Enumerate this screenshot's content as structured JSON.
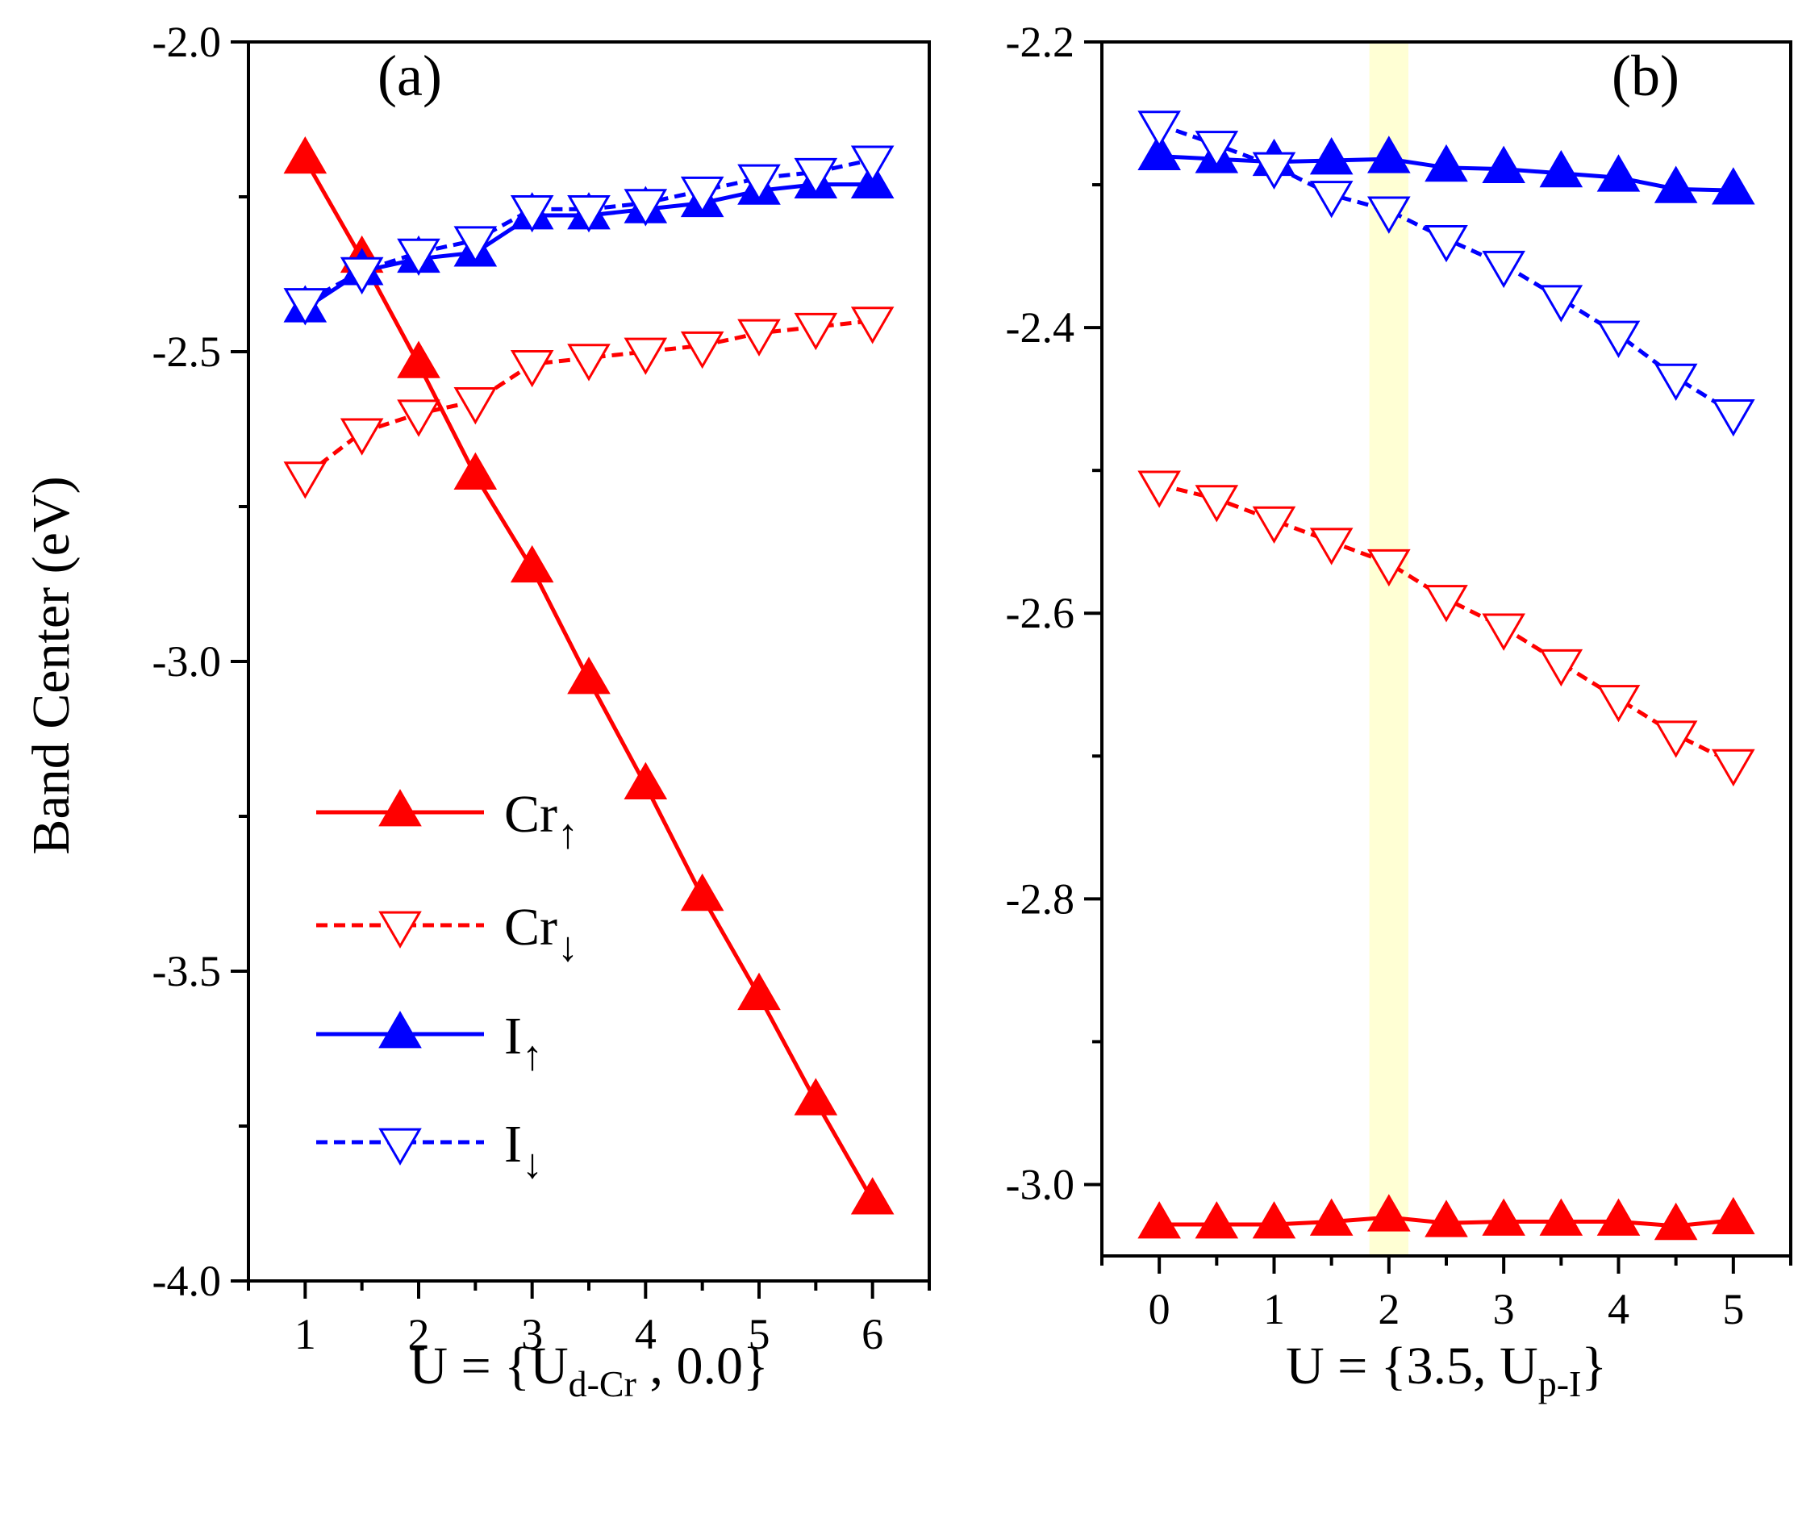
{
  "figure": {
    "ylabel": "Band Center (eV)"
  },
  "chart_data": [
    {
      "type": "line",
      "panel_label": "(a)",
      "xlabel": {
        "main": "U = {U",
        "sub": "d-Cr",
        "tail": " , 0.0}"
      },
      "xlim": [
        0.5,
        6.5
      ],
      "ylim": [
        -4.0,
        -2.0
      ],
      "x_ticks": [
        1,
        2,
        3,
        4,
        5,
        6
      ],
      "x_tick_labels": [
        "1",
        "2",
        "3",
        "4",
        "5",
        "6"
      ],
      "y_ticks": [
        -2.0,
        -2.5,
        -3.0,
        -3.5,
        -4.0
      ],
      "y_tick_labels": [
        "-2.0",
        "-2.5",
        "-3.0",
        "-3.5",
        "-4.0"
      ],
      "x": [
        1,
        1.5,
        2,
        2.5,
        3,
        3.5,
        4,
        4.5,
        5,
        5.5,
        6
      ],
      "series": [
        {
          "name": "Cr↑",
          "values": [
            -2.19,
            -2.35,
            -2.52,
            -2.7,
            -2.85,
            -3.03,
            -3.2,
            -3.38,
            -3.54,
            -3.71,
            -3.87
          ],
          "color": "#ff0000",
          "dash": false,
          "marker": "triangle-up",
          "filled": true
        },
        {
          "name": "Cr↓",
          "values": [
            -2.7,
            -2.63,
            -2.6,
            -2.58,
            -2.52,
            -2.51,
            -2.5,
            -2.49,
            -2.47,
            -2.46,
            -2.45
          ],
          "color": "#ff0000",
          "dash": true,
          "marker": "triangle-down",
          "filled": false
        },
        {
          "name": "I↑",
          "values": [
            -2.43,
            -2.37,
            -2.35,
            -2.34,
            -2.28,
            -2.28,
            -2.27,
            -2.26,
            -2.24,
            -2.23,
            -2.23
          ],
          "color": "#0000ff",
          "dash": false,
          "marker": "triangle-up",
          "filled": true
        },
        {
          "name": "I↓",
          "values": [
            -2.42,
            -2.37,
            -2.34,
            -2.32,
            -2.27,
            -2.27,
            -2.26,
            -2.24,
            -2.22,
            -2.21,
            -2.19
          ],
          "color": "#0000ff",
          "dash": true,
          "marker": "triangle-down",
          "filled": false
        }
      ],
      "legend": {
        "placement": "lower-left",
        "entries": [
          {
            "base": "Cr",
            "arrow": "↑",
            "series": "Cr↑"
          },
          {
            "base": "Cr",
            "arrow": "↓",
            "series": "Cr↓"
          },
          {
            "base": "I",
            "arrow": "↑",
            "series": "I↑"
          },
          {
            "base": "I",
            "arrow": "↓",
            "series": "I↓"
          }
        ]
      }
    },
    {
      "type": "line",
      "panel_label": "(b)",
      "xlabel": {
        "main": "U = {3.5, U",
        "sub": "p-I",
        "tail": "}"
      },
      "xlim": [
        -0.5,
        5.5
      ],
      "ylim": [
        -3.05,
        -2.2
      ],
      "x_ticks": [
        0,
        1,
        2,
        3,
        4,
        5
      ],
      "x_tick_labels": [
        "0",
        "1",
        "2",
        "3",
        "4",
        "5"
      ],
      "y_ticks": [
        -2.2,
        -2.4,
        -2.6,
        -2.8,
        -3.0
      ],
      "y_tick_labels": [
        "-2.2",
        "-2.4",
        "-2.6",
        "-2.8",
        "-3.0"
      ],
      "highlight_band": {
        "x_range": [
          1.83,
          2.17
        ],
        "color": "#ffffcc"
      },
      "x": [
        0,
        0.5,
        1,
        1.5,
        2,
        2.5,
        3,
        3.5,
        4,
        4.5,
        5
      ],
      "series": [
        {
          "name": "Cr↑",
          "values": [
            -3.028,
            -3.028,
            -3.028,
            -3.026,
            -3.023,
            -3.027,
            -3.026,
            -3.026,
            -3.026,
            -3.029,
            -3.025
          ],
          "color": "#ff0000",
          "dash": false,
          "marker": "triangle-up",
          "filled": true
        },
        {
          "name": "Cr↓",
          "values": [
            -2.51,
            -2.52,
            -2.535,
            -2.55,
            -2.565,
            -2.59,
            -2.61,
            -2.635,
            -2.66,
            -2.685,
            -2.705
          ],
          "color": "#ff0000",
          "dash": true,
          "marker": "triangle-down",
          "filled": false
        },
        {
          "name": "I↑",
          "values": [
            -2.28,
            -2.282,
            -2.284,
            -2.283,
            -2.282,
            -2.288,
            -2.289,
            -2.292,
            -2.295,
            -2.303,
            -2.304
          ],
          "color": "#0000ff",
          "dash": false,
          "marker": "triangle-up",
          "filled": true
        },
        {
          "name": "I↓",
          "values": [
            -2.258,
            -2.272,
            -2.287,
            -2.307,
            -2.318,
            -2.338,
            -2.356,
            -2.38,
            -2.405,
            -2.435,
            -2.46
          ],
          "color": "#0000ff",
          "dash": true,
          "marker": "triangle-down",
          "filled": false
        }
      ]
    }
  ]
}
